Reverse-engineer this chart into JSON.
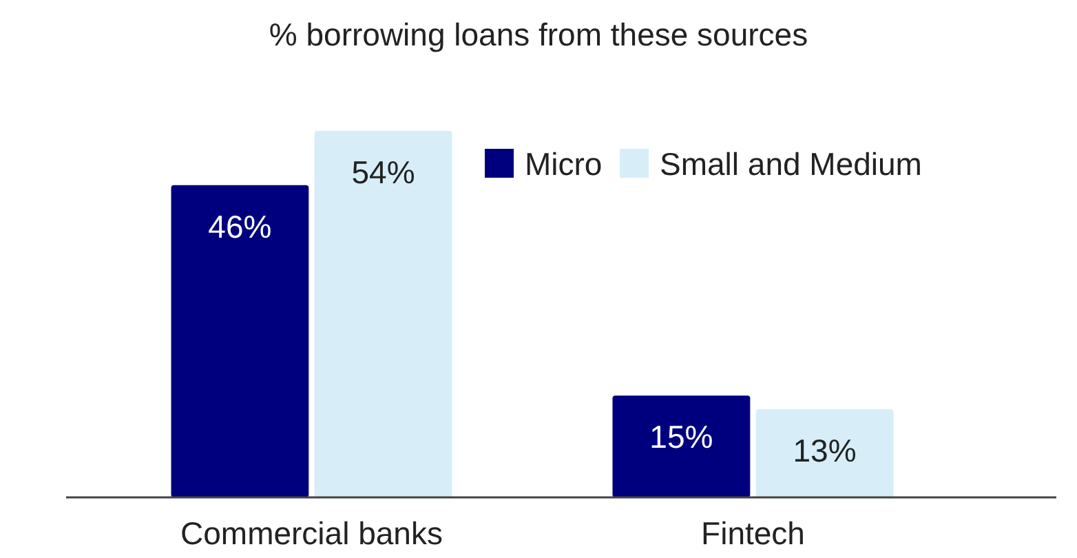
{
  "chart_data": {
    "type": "bar",
    "title": "% borrowing loans from these sources",
    "categories": [
      "Commercial banks",
      "Fintech"
    ],
    "series": [
      {
        "name": "Micro",
        "color": "#00007f",
        "values": [
          46,
          15
        ],
        "value_labels": [
          "46%",
          "15%"
        ]
      },
      {
        "name": "Small and Medium",
        "color": "#d7eef9",
        "values": [
          54,
          13
        ],
        "value_labels": [
          "54%",
          "13%"
        ]
      }
    ],
    "legend": "top right"
  }
}
